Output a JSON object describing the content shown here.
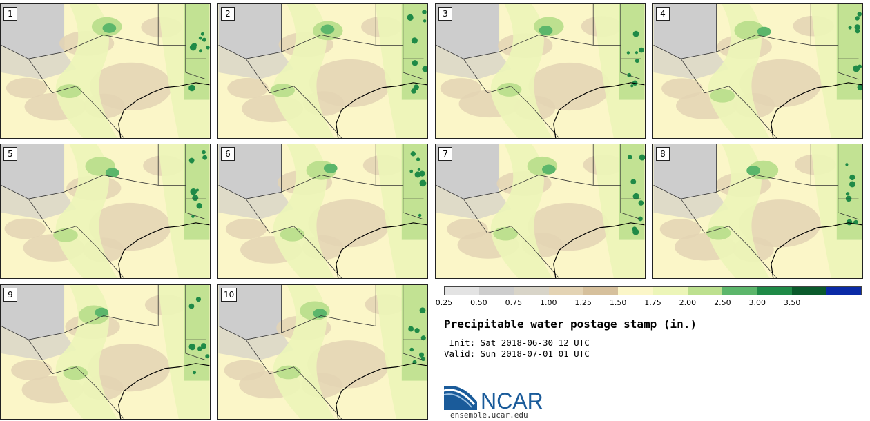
{
  "panels": [
    {
      "label": "1"
    },
    {
      "label": "2"
    },
    {
      "label": "3"
    },
    {
      "label": "4"
    },
    {
      "label": "5"
    },
    {
      "label": "6"
    },
    {
      "label": "7"
    },
    {
      "label": "8"
    },
    {
      "label": "9"
    },
    {
      "label": "10"
    }
  ],
  "colorbar": {
    "ticks": [
      "0.25",
      "0.50",
      "0.75",
      "1.00",
      "1.25",
      "1.50",
      "1.75",
      "2.00",
      "2.50",
      "3.00",
      "3.50"
    ],
    "colors": [
      "#e3e3e3",
      "#cdcdcd",
      "#d8d4c8",
      "#e3d3b4",
      "#d6c09c",
      "#fbf6c8",
      "#ecf5b8",
      "#bde08f",
      "#5cb66b",
      "#1f8a47",
      "#0b5a2c",
      "#0a2aa6"
    ]
  },
  "title": "Precipitable water postage stamp (in.)",
  "init_line": " Init: Sat 2018-06-30 12 UTC",
  "valid_line": "Valid: Sun 2018-07-01 01 UTC",
  "logo_text": "NCAR",
  "url": "ensemble.ucar.edu"
}
